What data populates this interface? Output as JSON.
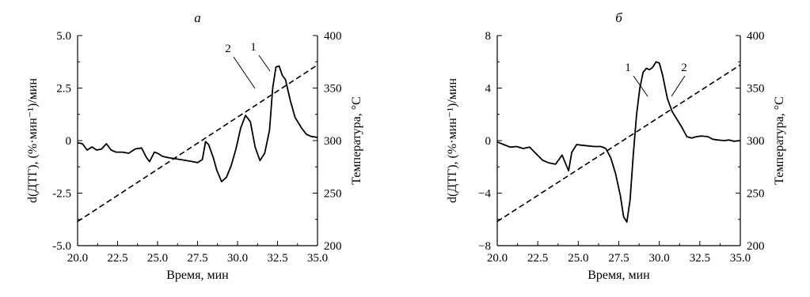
{
  "chart_data": [
    {
      "type": "line",
      "title": "а",
      "xlabel": "Время, мин",
      "ylabel": "d(ДТГ), (%·мин⁻¹)/мин",
      "y2label": "Температура, °С",
      "xlim": [
        20.0,
        35.0
      ],
      "ylim": [
        -5.0,
        5.0
      ],
      "y2lim": [
        200,
        400
      ],
      "xticks": [
        "20.0",
        "22.5",
        "25.0",
        "27.5",
        "30.0",
        "32.5",
        "35.0"
      ],
      "yticks": [
        "-5.0",
        "-2.5",
        "0",
        "2.5",
        "5.0"
      ],
      "y2ticks": [
        "200",
        "250",
        "300",
        "350",
        "400"
      ],
      "grid": false,
      "series": [
        {
          "name": "1",
          "axis": "left",
          "style": "solid",
          "x": [
            20.0,
            20.3,
            20.6,
            20.9,
            21.2,
            21.5,
            21.8,
            22.1,
            22.4,
            22.8,
            23.2,
            23.6,
            24.0,
            24.3,
            24.5,
            24.8,
            25.0,
            25.3,
            25.6,
            26.0,
            26.4,
            26.8,
            27.2,
            27.5,
            27.8,
            28.0,
            28.2,
            28.5,
            28.7,
            29.0,
            29.3,
            29.6,
            29.9,
            30.2,
            30.5,
            30.8,
            31.1,
            31.4,
            31.7,
            32.0,
            32.2,
            32.4,
            32.6,
            32.8,
            33.0,
            33.3,
            33.6,
            34.0,
            34.3,
            34.6,
            35.0
          ],
          "y": [
            -0.1,
            -0.15,
            -0.45,
            -0.3,
            -0.45,
            -0.4,
            -0.15,
            -0.45,
            -0.55,
            -0.55,
            -0.6,
            -0.4,
            -0.35,
            -0.8,
            -1.0,
            -0.55,
            -0.6,
            -0.75,
            -0.8,
            -0.85,
            -0.9,
            -0.95,
            -1.0,
            -1.05,
            -0.9,
            -0.05,
            -0.2,
            -0.85,
            -1.4,
            -1.95,
            -1.75,
            -1.2,
            -0.4,
            0.6,
            1.2,
            0.9,
            -0.3,
            -0.95,
            -0.6,
            0.5,
            2.5,
            3.5,
            3.55,
            3.1,
            2.9,
            1.9,
            1.1,
            0.6,
            0.3,
            0.2,
            0.15
          ]
        },
        {
          "name": "2",
          "axis": "right",
          "style": "dashed",
          "x": [
            20.0,
            35.0
          ],
          "y": [
            223,
            372
          ]
        }
      ],
      "annotations": [
        {
          "text": "1",
          "series": "1"
        },
        {
          "text": "2",
          "series": "2"
        }
      ]
    },
    {
      "type": "line",
      "title": "б",
      "xlabel": "Время, мин",
      "ylabel": "d(ДТГ), (%·мин⁻¹)/мин",
      "y2label": "Температура, °С",
      "xlim": [
        20.0,
        35.0
      ],
      "ylim": [
        -8,
        8
      ],
      "y2lim": [
        200,
        400
      ],
      "xticks": [
        "20.0",
        "22.5",
        "25.0",
        "27.5",
        "30.0",
        "32.5",
        "35.0"
      ],
      "yticks": [
        "−8",
        "−4",
        "0",
        "4",
        "8"
      ],
      "y2ticks": [
        "200",
        "250",
        "300",
        "350",
        "400"
      ],
      "grid": false,
      "series": [
        {
          "name": "1",
          "axis": "left",
          "style": "solid",
          "x": [
            20.0,
            20.4,
            20.8,
            21.2,
            21.6,
            22.0,
            22.4,
            22.8,
            23.2,
            23.6,
            24.0,
            24.2,
            24.4,
            24.6,
            24.9,
            25.2,
            25.6,
            26.0,
            26.4,
            26.7,
            27.0,
            27.3,
            27.6,
            27.8,
            28.0,
            28.2,
            28.4,
            28.6,
            28.8,
            29.0,
            29.2,
            29.4,
            29.6,
            29.8,
            30.0,
            30.2,
            30.5,
            30.8,
            31.1,
            31.4,
            31.7,
            32.0,
            32.3,
            32.6,
            33.0,
            33.3,
            33.6,
            34.0,
            34.3,
            34.6,
            35.0
          ],
          "y": [
            -0.1,
            -0.3,
            -0.5,
            -0.45,
            -0.6,
            -0.5,
            -1.0,
            -1.5,
            -1.7,
            -1.8,
            -1.1,
            -1.7,
            -2.3,
            -0.9,
            -0.3,
            -0.35,
            -0.4,
            -0.45,
            -0.45,
            -0.6,
            -1.3,
            -2.5,
            -4.2,
            -5.8,
            -6.2,
            -4.5,
            -1.0,
            2.0,
            4.0,
            5.2,
            5.5,
            5.4,
            5.6,
            6.0,
            5.9,
            5.0,
            3.2,
            2.2,
            1.6,
            1.0,
            0.3,
            0.2,
            0.3,
            0.35,
            0.3,
            0.1,
            0.05,
            0.0,
            0.05,
            -0.05,
            0.0
          ]
        },
        {
          "name": "2",
          "axis": "right",
          "style": "dashed",
          "x": [
            20.0,
            35.0
          ],
          "y": [
            223,
            372
          ]
        }
      ],
      "annotations": [
        {
          "text": "1",
          "series": "1"
        },
        {
          "text": "2",
          "series": "2"
        }
      ]
    }
  ]
}
